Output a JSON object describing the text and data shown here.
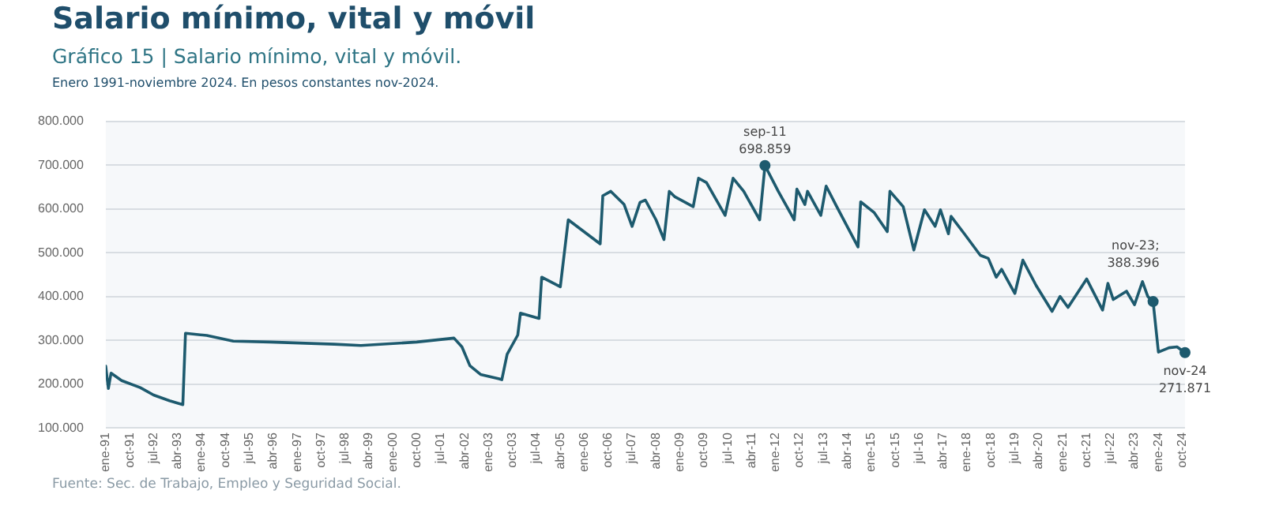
{
  "chart_data": {
    "type": "line",
    "title": "Salario mínimo, vital y móvil",
    "subtitle": "Gráfico 15 | Salario mínimo, vital y móvil.\nEnero 1991-noviembre 2024. En pesos constantes nov-2024.",
    "x": [
      "1991-01",
      "1991-02",
      "1991-03",
      "1991-07",
      "1992-02",
      "1992-07",
      "1993-01",
      "1993-06",
      "1993-07",
      "1994-03",
      "1995-01",
      "1996-03",
      "1998-03",
      "1999-01",
      "2000-10",
      "2001-12",
      "2002-03",
      "2002-06",
      "2002-10",
      "2003-05",
      "2003-06",
      "2003-08",
      "2003-12",
      "2004-01",
      "2004-08",
      "2004-09",
      "2005-04",
      "2005-07",
      "2006-07",
      "2006-08",
      "2006-11",
      "2007-04",
      "2007-07",
      "2007-10",
      "2007-12",
      "2008-04",
      "2008-07",
      "2008-09",
      "2008-11",
      "2009-06",
      "2009-08",
      "2009-11",
      "2010-06",
      "2010-09",
      "2011-01",
      "2011-07",
      "2011-09",
      "2012-02",
      "2012-08",
      "2012-09",
      "2012-12",
      "2013-01",
      "2013-06",
      "2013-08",
      "2013-12",
      "2014-08",
      "2014-09",
      "2015-02",
      "2015-07",
      "2015-08",
      "2016-01",
      "2016-05",
      "2016-09",
      "2017-01",
      "2017-03",
      "2017-06",
      "2017-07",
      "2017-12",
      "2018-06",
      "2018-09",
      "2018-12",
      "2019-02",
      "2019-07",
      "2019-10",
      "2020-03",
      "2020-09",
      "2020-12",
      "2021-03",
      "2021-10",
      "2022-04",
      "2022-06",
      "2022-08",
      "2023-01",
      "2023-04",
      "2023-07",
      "2023-09",
      "2023-11",
      "2024-01",
      "2024-05",
      "2024-08",
      "2024-11"
    ],
    "series": [
      {
        "color": "#1d5a6e",
        "values": [
          241000,
          190000,
          225000,
          208000,
          192000,
          175000,
          162000,
          153000,
          316000,
          311000,
          298000,
          296000,
          291000,
          288000,
          296000,
          305000,
          285000,
          242000,
          222000,
          212000,
          210000,
          268000,
          312000,
          362000,
          350000,
          444000,
          422000,
          575000,
          520000,
          630000,
          640000,
          610000,
          560000,
          615000,
          620000,
          575000,
          530000,
          640000,
          628000,
          605000,
          670000,
          660000,
          585000,
          670000,
          640000,
          575000,
          698859,
          640000,
          575000,
          645000,
          610000,
          640000,
          585000,
          652000,
          605000,
          513000,
          616000,
          592000,
          548000,
          640000,
          605000,
          506000,
          598000,
          560000,
          598000,
          543000,
          583000,
          543000,
          494000,
          487000,
          444000,
          462000,
          407000,
          483000,
          425000,
          366000,
          400000,
          375000,
          440000,
          369000,
          430000,
          393000,
          412000,
          381000,
          434000,
          400000,
          388396,
          273000,
          283000,
          285000,
          271871
        ]
      }
    ],
    "xlim": [
      "1991-01",
      "2024-11"
    ],
    "xticks": [
      {
        "value": "1991-01",
        "label": "ene-91"
      },
      {
        "value": "1991-10",
        "label": "oct-91"
      },
      {
        "value": "1992-07",
        "label": "jul-92"
      },
      {
        "value": "1993-04",
        "label": "abr-93"
      },
      {
        "value": "1994-01",
        "label": "ene-94"
      },
      {
        "value": "1994-10",
        "label": "oct-94"
      },
      {
        "value": "1995-07",
        "label": "jul-95"
      },
      {
        "value": "1996-04",
        "label": "abr-96"
      },
      {
        "value": "1997-01",
        "label": "ene-97"
      },
      {
        "value": "1997-10",
        "label": "oct-97"
      },
      {
        "value": "1998-07",
        "label": "jul-98"
      },
      {
        "value": "1999-04",
        "label": "abr-99"
      },
      {
        "value": "2000-01",
        "label": "ene-00"
      },
      {
        "value": "2000-10",
        "label": "oct-00"
      },
      {
        "value": "2001-07",
        "label": "jul-01"
      },
      {
        "value": "2002-04",
        "label": "abr-02"
      },
      {
        "value": "2003-01",
        "label": "ene-03"
      },
      {
        "value": "2003-10",
        "label": "oct-03"
      },
      {
        "value": "2004-07",
        "label": "jul-04"
      },
      {
        "value": "2005-04",
        "label": "abr-05"
      },
      {
        "value": "2006-01",
        "label": "ene-06"
      },
      {
        "value": "2006-10",
        "label": "oct-06"
      },
      {
        "value": "2007-07",
        "label": "jul-07"
      },
      {
        "value": "2008-04",
        "label": "abr-08"
      },
      {
        "value": "2009-01",
        "label": "ene-09"
      },
      {
        "value": "2009-10",
        "label": "oct-09"
      },
      {
        "value": "2010-07",
        "label": "jul-10"
      },
      {
        "value": "2011-04",
        "label": "abr-11"
      },
      {
        "value": "2012-01",
        "label": "ene-12"
      },
      {
        "value": "2012-10",
        "label": "oct-12"
      },
      {
        "value": "2013-07",
        "label": "jul-13"
      },
      {
        "value": "2014-04",
        "label": "abr-14"
      },
      {
        "value": "2015-01",
        "label": "ene-15"
      },
      {
        "value": "2015-10",
        "label": "oct-15"
      },
      {
        "value": "2016-07",
        "label": "jul-16"
      },
      {
        "value": "2017-04",
        "label": "abr-17"
      },
      {
        "value": "2018-01",
        "label": "ene-18"
      },
      {
        "value": "2018-10",
        "label": "oct-18"
      },
      {
        "value": "2019-07",
        "label": "jul-19"
      },
      {
        "value": "2020-04",
        "label": "abr-20"
      },
      {
        "value": "2021-01",
        "label": "ene-21"
      },
      {
        "value": "2021-10",
        "label": "oct-21"
      },
      {
        "value": "2022-07",
        "label": "jul-22"
      },
      {
        "value": "2023-04",
        "label": "abr-23"
      },
      {
        "value": "2024-01",
        "label": "ene-24"
      },
      {
        "value": "2024-10",
        "label": "oct-24"
      }
    ],
    "ylim": [
      100000,
      800000
    ],
    "yticks": [
      {
        "value": 100000,
        "label": "100.000"
      },
      {
        "value": 200000,
        "label": "200.000"
      },
      {
        "value": 300000,
        "label": "300.000"
      },
      {
        "value": 400000,
        "label": "400.000"
      },
      {
        "value": 500000,
        "label": "500.000"
      },
      {
        "value": 600000,
        "label": "600.000"
      },
      {
        "value": 700000,
        "label": "700.000"
      },
      {
        "value": 800000,
        "label": "800.000"
      }
    ],
    "grid": "y",
    "legend": false,
    "marker": "none",
    "line_style": "solid",
    "annotations": [
      {
        "text": "sep-11\n698.859",
        "x": "2011-09",
        "y": 698859
      },
      {
        "text": "nov-23;\n388.396",
        "x": "2023-11",
        "y": 388396
      },
      {
        "text": "nov-24\n271.871",
        "x": "2024-11",
        "y": 271871
      },
      "Fuente: Sec. de Trabajo, Empleo y Seguridad Social."
    ]
  }
}
